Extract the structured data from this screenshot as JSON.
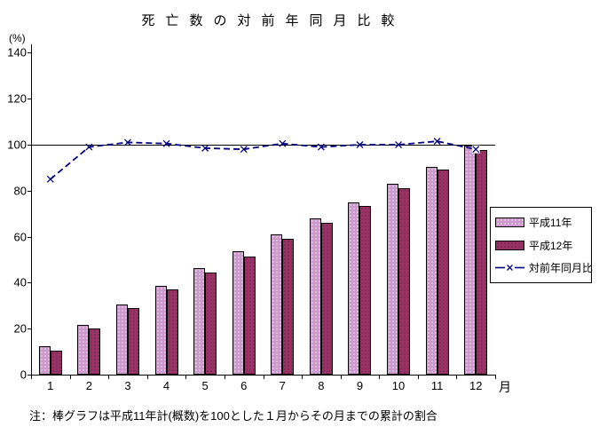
{
  "chart_data": {
    "type": "combo",
    "title": "死亡数の対前年同月比較",
    "y_unit": "(%)",
    "x_unit": "月",
    "categories": [
      "1",
      "2",
      "3",
      "4",
      "5",
      "6",
      "7",
      "8",
      "9",
      "10",
      "11",
      "12"
    ],
    "y_ticks": [
      0,
      20,
      40,
      60,
      80,
      100,
      120,
      140
    ],
    "ylim": [
      0,
      140
    ],
    "reference_line": 100,
    "grid": "single horizontal line at 100 only",
    "legend_position": "right-middle",
    "series": [
      {
        "name": "平成11年",
        "type": "bar",
        "color": "#cc99cc",
        "values": [
          12.5,
          21.5,
          30.5,
          38.5,
          46.5,
          53.5,
          61,
          68,
          75,
          83,
          90.5,
          99.5
        ]
      },
      {
        "name": "平成12年",
        "type": "bar",
        "color": "#993366",
        "values": [
          10.5,
          20,
          29,
          37,
          44.5,
          51.5,
          59,
          66,
          73.5,
          81,
          89,
          97.5
        ]
      },
      {
        "name": "対前年同月比",
        "type": "line",
        "marker": "x",
        "color": "#000080",
        "values": [
          85,
          99,
          101,
          100.5,
          98.5,
          98,
          100.5,
          99,
          100,
          100,
          101.5,
          98
        ]
      }
    ],
    "note": "注：棒グラフは平成11年計(概数)を100とした１月からその月までの累計の割合"
  }
}
